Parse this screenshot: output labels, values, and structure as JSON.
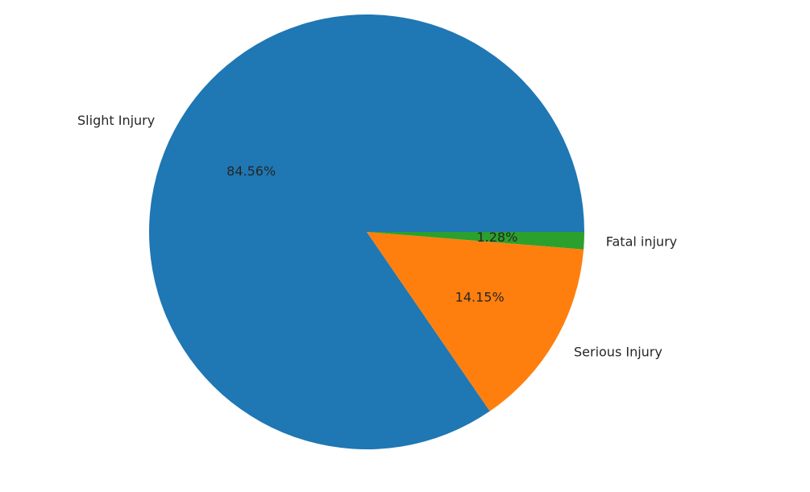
{
  "chart_data": {
    "type": "pie",
    "title": "",
    "slices": [
      {
        "label": "Slight Injury",
        "value": 84.56,
        "display": "84.56%",
        "color": "#1f77b4"
      },
      {
        "label": "Serious Injury",
        "value": 14.15,
        "display": "14.15%",
        "color": "#ff7f0e"
      },
      {
        "label": "Fatal injury",
        "value": 1.28,
        "display": "1.28%",
        "color": "#2ca02c"
      }
    ],
    "start_angle_deg": 0,
    "direction": "counterclockwise",
    "legend": "none"
  }
}
